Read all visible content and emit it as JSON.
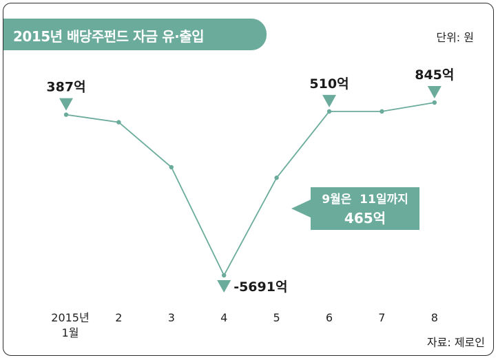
{
  "title": "2015년 배당주펀드 자금 유·출입",
  "unit_label": "단위: 원",
  "source": "자료: 제로인",
  "colors": {
    "accent": "#6aab9b",
    "line": "#6aab9b"
  },
  "callout": {
    "line1": "9월은  11일까지",
    "line2": "465억"
  },
  "chart_data": {
    "type": "line",
    "title": "2015년 배당주펀드 자금 유·출입",
    "categories": [
      "2015년\n1월",
      "2",
      "3",
      "4",
      "5",
      "6",
      "7",
      "8"
    ],
    "tick_labels": [
      [
        "2015년",
        "1월"
      ],
      [
        "2"
      ],
      [
        "3"
      ],
      [
        "4"
      ],
      [
        "5"
      ],
      [
        "6"
      ],
      [
        "7"
      ],
      [
        "8"
      ]
    ],
    "series": [
      {
        "values": [
          387,
          100,
          -1600,
          -5691,
          -2000,
          510,
          510,
          845
        ]
      }
    ],
    "point_labels": [
      {
        "index": 0,
        "text": "387억"
      },
      {
        "index": 3,
        "text": "-5691억"
      },
      {
        "index": 5,
        "text": "510억"
      },
      {
        "index": 7,
        "text": "845억"
      }
    ],
    "annotation": "9월은  11일까지 465억",
    "grid": false,
    "legend": "none"
  }
}
